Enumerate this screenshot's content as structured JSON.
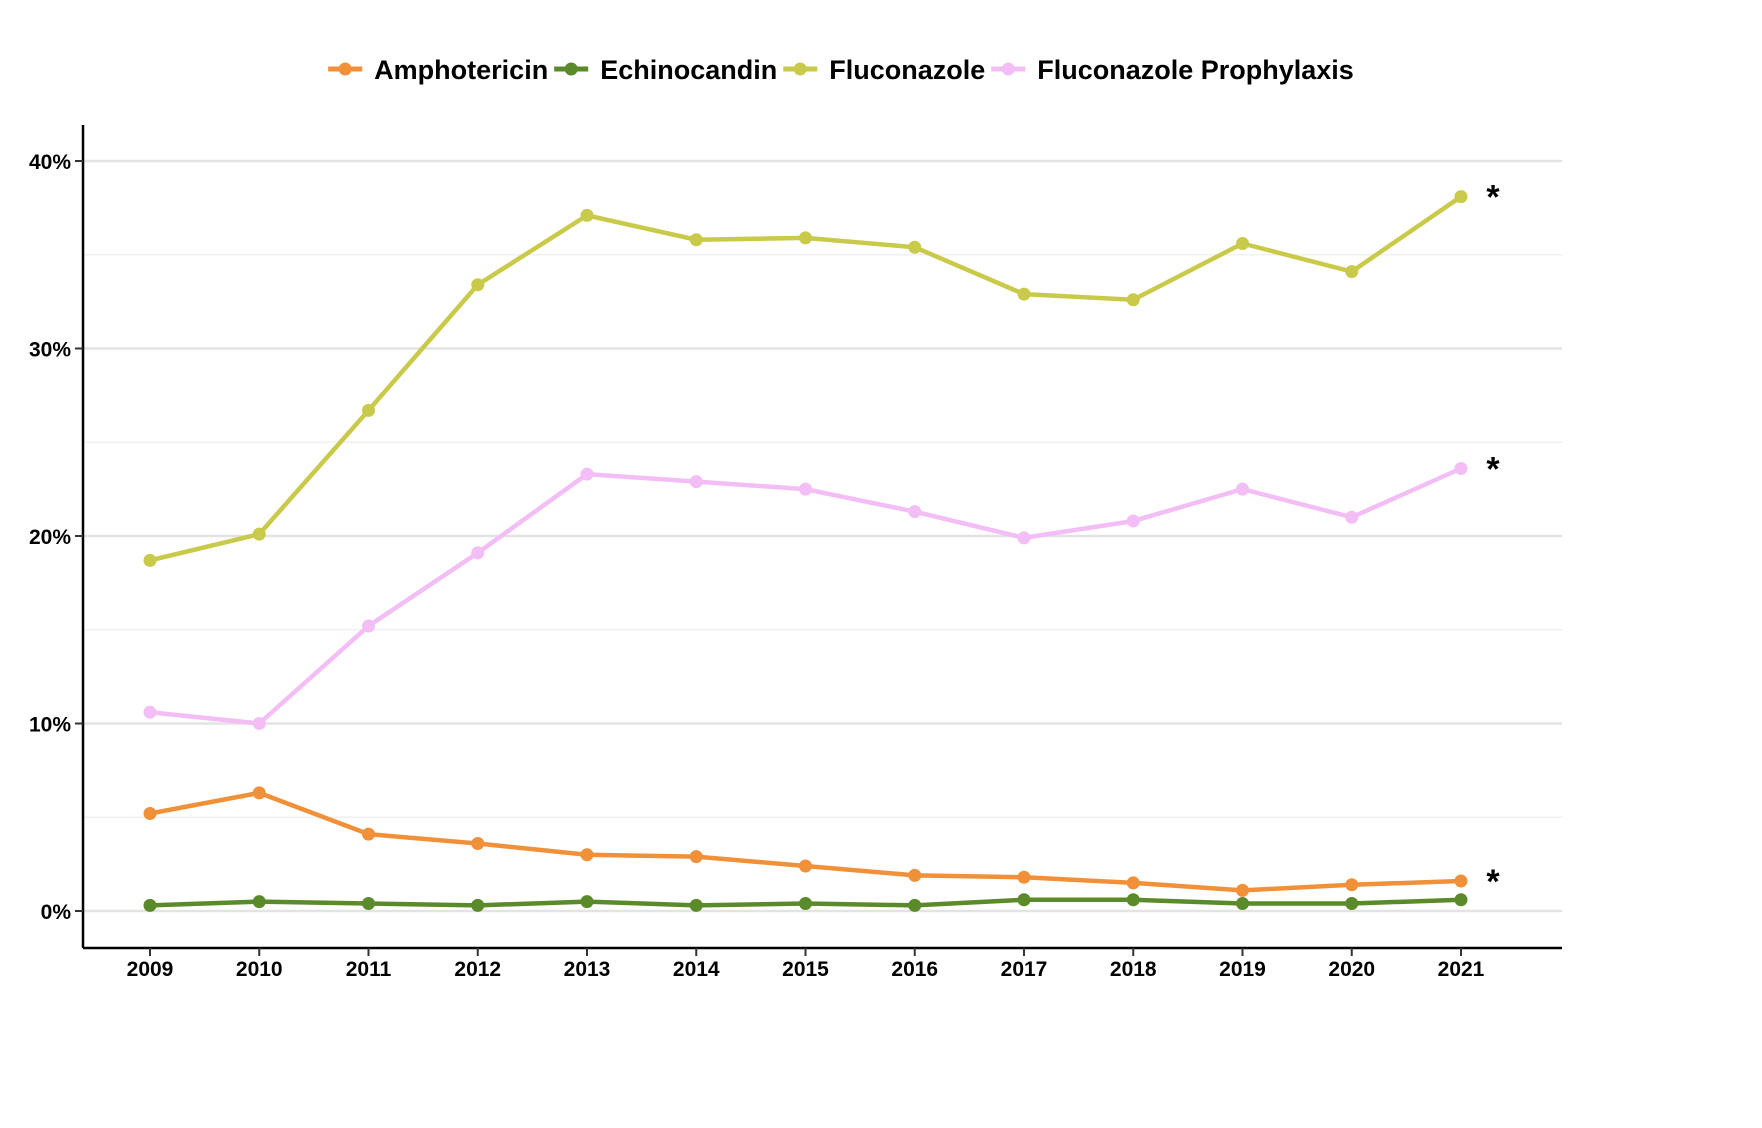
{
  "chart_data": {
    "type": "line",
    "title": "",
    "xlabel": "",
    "ylabel": "",
    "x": [
      2009,
      2010,
      2011,
      2012,
      2013,
      2014,
      2015,
      2016,
      2017,
      2018,
      2019,
      2020,
      2021
    ],
    "x_tick_labels": [
      "2009",
      "2010",
      "2011",
      "2012",
      "2013",
      "2014",
      "2015",
      "2016",
      "2017",
      "2018",
      "2019",
      "2020",
      "2021"
    ],
    "ylim": [
      0,
      0.4
    ],
    "y_ticks": [
      0,
      0.1,
      0.2,
      0.3,
      0.4
    ],
    "y_tick_labels": [
      "0%",
      "10%",
      "20%",
      "30%",
      "40%"
    ],
    "grid": "horizontal",
    "legend_position": "top",
    "series": [
      {
        "name": "Amphotericin",
        "color": "#f0913a",
        "values": [
          0.052,
          0.063,
          0.041,
          0.036,
          0.03,
          0.029,
          0.024,
          0.019,
          0.018,
          0.015,
          0.011,
          0.014,
          0.016
        ]
      },
      {
        "name": "Echinocandin",
        "color": "#5a8a2a",
        "values": [
          0.003,
          0.005,
          0.004,
          0.003,
          0.005,
          0.003,
          0.004,
          0.003,
          0.006,
          0.006,
          0.004,
          0.004,
          0.006
        ]
      },
      {
        "name": "Fluconazole",
        "color": "#c9c94a",
        "values": [
          0.187,
          0.201,
          0.267,
          0.334,
          0.371,
          0.358,
          0.359,
          0.354,
          0.329,
          0.326,
          0.356,
          0.341,
          0.381
        ]
      },
      {
        "name": "Fluconazole Prophylaxis",
        "color": "#f3bdf5",
        "values": [
          0.106,
          0.1,
          0.152,
          0.191,
          0.233,
          0.229,
          0.225,
          0.213,
          0.199,
          0.208,
          0.225,
          0.21,
          0.236
        ]
      }
    ],
    "annotations": [
      {
        "text": "*",
        "series": "Fluconazole"
      },
      {
        "text": "*",
        "series": "Fluconazole Prophylaxis"
      },
      {
        "text": "*",
        "series": "Amphotericin"
      }
    ]
  }
}
